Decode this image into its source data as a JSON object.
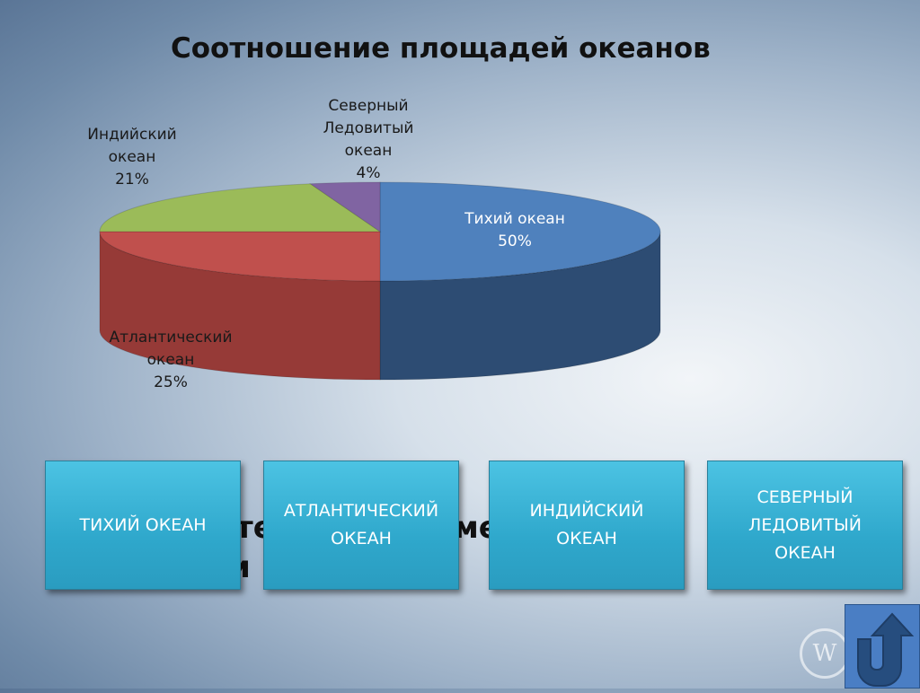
{
  "chart_data": {
    "type": "pie",
    "title": "Соотношение площадей океанов",
    "style": "3d",
    "slices": [
      {
        "label": "Тихий океан",
        "value": 50,
        "pct": "50%",
        "color": "#4f81bd",
        "side": "#2d4c73"
      },
      {
        "label": "Атлантический океан",
        "value": 25,
        "pct": "25%",
        "color": "#c0504d",
        "side": "#963a37"
      },
      {
        "label": "Индийский океан",
        "value": 21,
        "pct": "21%",
        "color": "#9bbb59",
        "side": "#6f8a3c"
      },
      {
        "label": "Северный Ледовитый океан",
        "value": 4,
        "pct": "4%",
        "color": "#8064a2",
        "side": "#5a4578"
      }
    ]
  },
  "labels": {
    "pacific": "Тихий океан\n50%",
    "atlantic": "Атлантический\nокеан\n25%",
    "indian": "Индийский\nокеан\n21%",
    "arctic": "Северный\nЛедовитый\nокеан\n4%"
  },
  "hidden_fragments": [
    "те",
    "ме",
    "и н"
  ],
  "buttons": [
    "ТИХИЙ ОКЕАН",
    "АТЛАНТИЧЕСКИЙ\nОКЕАН",
    "ИНДИЙСКИЙ\nОКЕАН",
    "СЕВЕРНЫЙ\nЛЕДОВИТЫЙ\nОКЕАН"
  ],
  "back_icon": "u-turn-arrow-up-icon",
  "watermark": "W"
}
